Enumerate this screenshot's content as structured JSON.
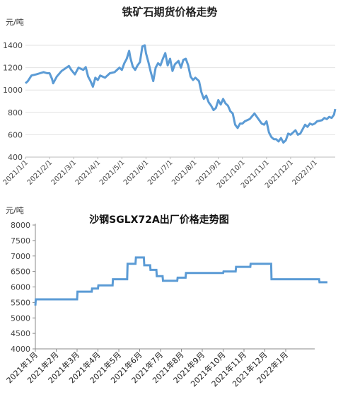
{
  "chart_data": [
    {
      "type": "line",
      "title": "铁矿石期货价格走势",
      "unit_label": "元/吨",
      "ylim": [
        400,
        1500
      ],
      "yticks": [
        "1400",
        "1200",
        "1000",
        "800",
        "600",
        "400"
      ],
      "xticks": [
        "2021/1/1",
        "2021/2/1",
        "2021/3/1",
        "2021/4/1",
        "2021/5/1",
        "2021/6/1",
        "2021/7/1",
        "2021/8/1",
        "2021/9/1",
        "2021/10/1",
        "2021/11/1",
        "2021/12/1",
        "2022/1/1"
      ],
      "grid": "horizontal",
      "color": "#5B9BD5",
      "series": [
        {
          "values": [
            [
              0,
              1060
            ],
            [
              0.1,
              1080
            ],
            [
              0.25,
              1130
            ],
            [
              0.45,
              1140
            ],
            [
              0.6,
              1150
            ],
            [
              0.75,
              1160
            ],
            [
              0.9,
              1150
            ],
            [
              1.0,
              1150
            ],
            [
              1.1,
              1100
            ],
            [
              1.15,
              1060
            ],
            [
              1.3,
              1120
            ],
            [
              1.5,
              1170
            ],
            [
              1.7,
              1200
            ],
            [
              1.8,
              1215
            ],
            [
              1.9,
              1180
            ],
            [
              2.05,
              1140
            ],
            [
              2.2,
              1200
            ],
            [
              2.4,
              1180
            ],
            [
              2.5,
              1205
            ],
            [
              2.6,
              1120
            ],
            [
              2.7,
              1080
            ],
            [
              2.8,
              1030
            ],
            [
              2.9,
              1110
            ],
            [
              3.0,
              1090
            ],
            [
              3.1,
              1130
            ],
            [
              3.3,
              1110
            ],
            [
              3.5,
              1150
            ],
            [
              3.7,
              1160
            ],
            [
              3.9,
              1200
            ],
            [
              4.0,
              1180
            ],
            [
              4.1,
              1240
            ],
            [
              4.2,
              1280
            ],
            [
              4.3,
              1350
            ],
            [
              4.35,
              1290
            ],
            [
              4.45,
              1210
            ],
            [
              4.55,
              1180
            ],
            [
              4.65,
              1220
            ],
            [
              4.75,
              1250
            ],
            [
              4.85,
              1390
            ],
            [
              4.95,
              1400
            ],
            [
              5.0,
              1330
            ],
            [
              5.1,
              1250
            ],
            [
              5.2,
              1160
            ],
            [
              5.3,
              1080
            ],
            [
              5.4,
              1200
            ],
            [
              5.5,
              1240
            ],
            [
              5.6,
              1220
            ],
            [
              5.7,
              1280
            ],
            [
              5.8,
              1330
            ],
            [
              5.9,
              1220
            ],
            [
              6.0,
              1280
            ],
            [
              6.1,
              1170
            ],
            [
              6.2,
              1230
            ],
            [
              6.35,
              1260
            ],
            [
              6.45,
              1200
            ],
            [
              6.55,
              1270
            ],
            [
              6.65,
              1280
            ],
            [
              6.75,
              1220
            ],
            [
              6.85,
              1120
            ],
            [
              6.95,
              1090
            ],
            [
              7.05,
              1110
            ],
            [
              7.2,
              1080
            ],
            [
              7.3,
              980
            ],
            [
              7.4,
              920
            ],
            [
              7.5,
              950
            ],
            [
              7.6,
              890
            ],
            [
              7.7,
              860
            ],
            [
              7.8,
              820
            ],
            [
              7.9,
              840
            ],
            [
              8.0,
              910
            ],
            [
              8.1,
              870
            ],
            [
              8.2,
              920
            ],
            [
              8.3,
              880
            ],
            [
              8.4,
              860
            ],
            [
              8.5,
              810
            ],
            [
              8.6,
              790
            ],
            [
              8.7,
              690
            ],
            [
              8.8,
              660
            ],
            [
              8.9,
              700
            ],
            [
              9.0,
              700
            ],
            [
              9.1,
              720
            ],
            [
              9.3,
              740
            ],
            [
              9.5,
              790
            ],
            [
              9.6,
              760
            ],
            [
              9.7,
              730
            ],
            [
              9.8,
              700
            ],
            [
              9.9,
              690
            ],
            [
              10.0,
              720
            ],
            [
              10.1,
              620
            ],
            [
              10.2,
              580
            ],
            [
              10.3,
              560
            ],
            [
              10.4,
              560
            ],
            [
              10.5,
              540
            ],
            [
              10.6,
              570
            ],
            [
              10.7,
              530
            ],
            [
              10.8,
              550
            ],
            [
              10.9,
              610
            ],
            [
              11.0,
              600
            ],
            [
              11.1,
              620
            ],
            [
              11.2,
              640
            ],
            [
              11.3,
              600
            ],
            [
              11.4,
              610
            ],
            [
              11.5,
              650
            ],
            [
              11.6,
              690
            ],
            [
              11.7,
              670
            ],
            [
              11.8,
              700
            ],
            [
              11.9,
              690
            ],
            [
              12.0,
              700
            ],
            [
              12.1,
              720
            ],
            [
              12.3,
              730
            ],
            [
              12.4,
              750
            ],
            [
              12.5,
              740
            ],
            [
              12.6,
              760
            ],
            [
              12.7,
              750
            ],
            [
              12.8,
              780
            ],
            [
              12.85,
              830
            ]
          ]
        }
      ]
    },
    {
      "type": "line",
      "title": "沙钢SGLX72A出厂价格走势图",
      "unit_label": "元/吨",
      "ylim": [
        4000,
        8000
      ],
      "yticks": [
        "8000",
        "7500",
        "7000",
        "6500",
        "6000",
        "5500",
        "5000",
        "4500",
        "4000"
      ],
      "xticks": [
        "2021年1月",
        "2021年2月",
        "2021年3月",
        "2021年4月",
        "2021年5月",
        "2021年6月",
        "2021年7月",
        "2021年8月",
        "2021年9月",
        "2021年10月",
        "2021年11月",
        "2021年12月",
        "2022年1月"
      ],
      "grid": "none",
      "color": "#5B9BD5",
      "series": [
        {
          "values": [
            [
              0,
              5400
            ],
            [
              0.02,
              5600
            ],
            [
              1.5,
              5600
            ],
            [
              2.0,
              5600
            ],
            [
              2.02,
              5850
            ],
            [
              2.7,
              5850
            ],
            [
              2.72,
              5950
            ],
            [
              3.0,
              5950
            ],
            [
              3.02,
              6050
            ],
            [
              3.7,
              6050
            ],
            [
              3.72,
              6250
            ],
            [
              4.4,
              6250
            ],
            [
              4.42,
              6750
            ],
            [
              4.8,
              6750
            ],
            [
              4.82,
              6950
            ],
            [
              5.2,
              6950
            ],
            [
              5.22,
              6700
            ],
            [
              5.5,
              6700
            ],
            [
              5.52,
              6550
            ],
            [
              5.8,
              6550
            ],
            [
              5.82,
              6350
            ],
            [
              6.1,
              6350
            ],
            [
              6.12,
              6200
            ],
            [
              6.8,
              6200
            ],
            [
              6.82,
              6300
            ],
            [
              7.2,
              6300
            ],
            [
              7.22,
              6450
            ],
            [
              9.0,
              6450
            ],
            [
              9.02,
              6500
            ],
            [
              9.6,
              6500
            ],
            [
              9.62,
              6650
            ],
            [
              10.3,
              6650
            ],
            [
              10.32,
              6750
            ],
            [
              11.3,
              6750
            ],
            [
              11.32,
              6250
            ],
            [
              13.6,
              6250
            ],
            [
              13.62,
              6150
            ],
            [
              14.0,
              6150
            ]
          ]
        }
      ]
    }
  ]
}
